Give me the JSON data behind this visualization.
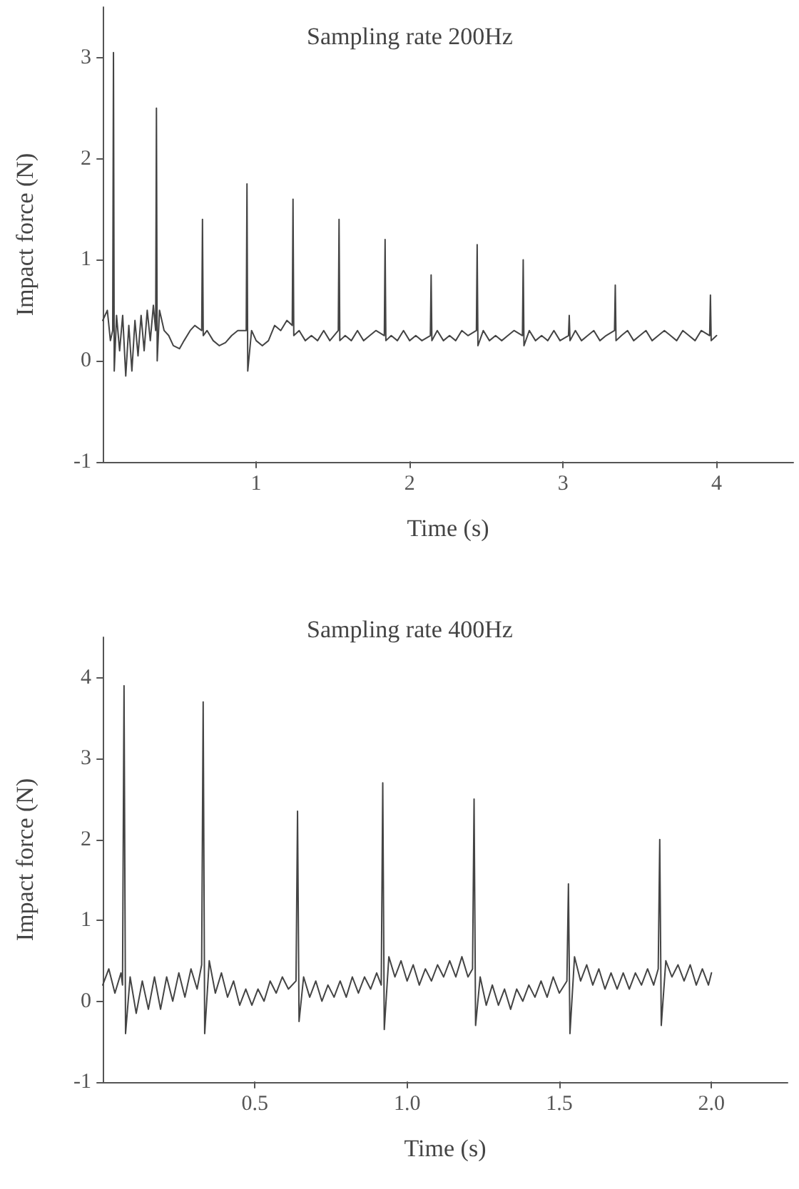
{
  "chart_data": [
    {
      "type": "line",
      "title": "Sampling rate 200Hz",
      "xlabel": "Time (s)",
      "ylabel": "Impact force (N)",
      "color": "#444444",
      "marker": "none",
      "xlim": [
        0,
        4.5
      ],
      "xticks": [
        1,
        2,
        3,
        4
      ],
      "ylim": [
        -1,
        3.5
      ],
      "yticks": [
        -1,
        0,
        1,
        2,
        3
      ],
      "x": [
        0,
        0.03,
        0.05,
        0.065,
        0.07,
        0.075,
        0.09,
        0.11,
        0.13,
        0.15,
        0.17,
        0.19,
        0.21,
        0.23,
        0.25,
        0.27,
        0.29,
        0.31,
        0.33,
        0.345,
        0.35,
        0.355,
        0.37,
        0.4,
        0.43,
        0.46,
        0.5,
        0.53,
        0.57,
        0.6,
        0.645,
        0.65,
        0.655,
        0.68,
        0.72,
        0.76,
        0.8,
        0.84,
        0.88,
        0.935,
        0.94,
        0.945,
        0.97,
        1.0,
        1.04,
        1.08,
        1.12,
        1.16,
        1.2,
        1.235,
        1.24,
        1.245,
        1.28,
        1.32,
        1.36,
        1.4,
        1.44,
        1.48,
        1.535,
        1.54,
        1.545,
        1.58,
        1.62,
        1.66,
        1.7,
        1.74,
        1.78,
        1.835,
        1.84,
        1.845,
        1.88,
        1.92,
        1.96,
        2.0,
        2.04,
        2.08,
        2.135,
        2.14,
        2.145,
        2.18,
        2.22,
        2.26,
        2.3,
        2.34,
        2.38,
        2.435,
        2.44,
        2.445,
        2.48,
        2.52,
        2.56,
        2.6,
        2.64,
        2.68,
        2.735,
        2.74,
        2.745,
        2.78,
        2.82,
        2.86,
        2.9,
        2.94,
        2.98,
        3.035,
        3.04,
        3.045,
        3.08,
        3.12,
        3.16,
        3.2,
        3.24,
        3.28,
        3.335,
        3.34,
        3.345,
        3.38,
        3.42,
        3.46,
        3.5,
        3.54,
        3.58,
        3.62,
        3.66,
        3.7,
        3.74,
        3.78,
        3.82,
        3.86,
        3.9,
        3.955,
        3.96,
        3.965,
        4.0
      ],
      "values": [
        0.4,
        0.5,
        0.2,
        0.3,
        3.05,
        -0.1,
        0.45,
        0.1,
        0.45,
        -0.15,
        0.35,
        -0.1,
        0.4,
        0.05,
        0.45,
        0.1,
        0.5,
        0.2,
        0.55,
        0.3,
        2.5,
        0.0,
        0.5,
        0.3,
        0.25,
        0.15,
        0.12,
        0.2,
        0.3,
        0.35,
        0.3,
        1.4,
        0.25,
        0.3,
        0.2,
        0.15,
        0.18,
        0.25,
        0.3,
        0.3,
        1.75,
        -0.1,
        0.3,
        0.2,
        0.15,
        0.2,
        0.35,
        0.3,
        0.4,
        0.35,
        1.6,
        0.25,
        0.3,
        0.2,
        0.25,
        0.2,
        0.3,
        0.2,
        0.3,
        1.4,
        0.2,
        0.25,
        0.2,
        0.3,
        0.2,
        0.25,
        0.3,
        0.25,
        1.2,
        0.2,
        0.25,
        0.2,
        0.3,
        0.2,
        0.25,
        0.2,
        0.25,
        0.85,
        0.2,
        0.3,
        0.2,
        0.25,
        0.2,
        0.3,
        0.25,
        0.3,
        1.15,
        0.15,
        0.3,
        0.2,
        0.25,
        0.2,
        0.25,
        0.3,
        0.25,
        1.0,
        0.15,
        0.3,
        0.2,
        0.25,
        0.2,
        0.3,
        0.2,
        0.25,
        0.45,
        0.2,
        0.3,
        0.2,
        0.25,
        0.3,
        0.2,
        0.25,
        0.3,
        0.75,
        0.2,
        0.25,
        0.3,
        0.2,
        0.25,
        0.3,
        0.2,
        0.25,
        0.3,
        0.25,
        0.2,
        0.3,
        0.25,
        0.2,
        0.3,
        0.25,
        0.65,
        0.2,
        0.25
      ]
    },
    {
      "type": "line",
      "title": "Sampling rate 400Hz",
      "xlabel": "Time (s)",
      "ylabel": "Impact force (N)",
      "color": "#444444",
      "marker": "none",
      "xlim": [
        0,
        2.25
      ],
      "xticks": [
        0.5,
        {
          "value": 1,
          "label": "1.0"
        },
        1.5,
        {
          "value": 2,
          "label": "2.0"
        }
      ],
      "ylim": [
        -1,
        4.5
      ],
      "yticks": [
        -1,
        0,
        1,
        2,
        3,
        4
      ],
      "x": [
        0,
        0.02,
        0.04,
        0.06,
        0.065,
        0.07,
        0.075,
        0.09,
        0.11,
        0.13,
        0.15,
        0.17,
        0.19,
        0.21,
        0.23,
        0.25,
        0.27,
        0.29,
        0.31,
        0.325,
        0.33,
        0.335,
        0.35,
        0.37,
        0.39,
        0.41,
        0.43,
        0.45,
        0.47,
        0.49,
        0.51,
        0.53,
        0.55,
        0.57,
        0.59,
        0.61,
        0.635,
        0.64,
        0.645,
        0.66,
        0.68,
        0.7,
        0.72,
        0.74,
        0.76,
        0.78,
        0.8,
        0.82,
        0.84,
        0.86,
        0.88,
        0.9,
        0.915,
        0.92,
        0.925,
        0.94,
        0.96,
        0.98,
        1.0,
        1.02,
        1.04,
        1.06,
        1.08,
        1.1,
        1.12,
        1.14,
        1.16,
        1.18,
        1.2,
        1.215,
        1.22,
        1.225,
        1.24,
        1.26,
        1.28,
        1.3,
        1.32,
        1.34,
        1.36,
        1.38,
        1.4,
        1.42,
        1.44,
        1.46,
        1.48,
        1.5,
        1.525,
        1.53,
        1.535,
        1.55,
        1.57,
        1.59,
        1.61,
        1.63,
        1.65,
        1.67,
        1.69,
        1.71,
        1.73,
        1.75,
        1.77,
        1.79,
        1.81,
        1.825,
        1.83,
        1.835,
        1.85,
        1.87,
        1.89,
        1.91,
        1.93,
        1.95,
        1.97,
        1.99,
        2.0
      ],
      "values": [
        0.2,
        0.4,
        0.1,
        0.35,
        0.2,
        3.9,
        -0.4,
        0.3,
        -0.15,
        0.25,
        -0.1,
        0.3,
        -0.1,
        0.3,
        0.0,
        0.35,
        0.05,
        0.4,
        0.15,
        0.45,
        3.7,
        -0.4,
        0.5,
        0.1,
        0.35,
        0.05,
        0.25,
        -0.05,
        0.15,
        -0.05,
        0.15,
        0.0,
        0.25,
        0.1,
        0.3,
        0.15,
        0.25,
        2.35,
        -0.25,
        0.3,
        0.05,
        0.25,
        0.0,
        0.2,
        0.05,
        0.25,
        0.05,
        0.3,
        0.1,
        0.3,
        0.15,
        0.35,
        0.2,
        2.7,
        -0.35,
        0.55,
        0.3,
        0.5,
        0.25,
        0.45,
        0.2,
        0.4,
        0.25,
        0.45,
        0.3,
        0.5,
        0.3,
        0.55,
        0.3,
        0.4,
        2.5,
        -0.3,
        0.3,
        -0.05,
        0.2,
        -0.05,
        0.15,
        -0.1,
        0.15,
        0.0,
        0.2,
        0.05,
        0.25,
        0.05,
        0.3,
        0.1,
        0.25,
        1.45,
        -0.4,
        0.55,
        0.25,
        0.45,
        0.2,
        0.4,
        0.15,
        0.35,
        0.15,
        0.35,
        0.15,
        0.35,
        0.2,
        0.4,
        0.2,
        0.4,
        2.0,
        -0.3,
        0.5,
        0.3,
        0.45,
        0.25,
        0.45,
        0.2,
        0.4,
        0.2,
        0.35
      ]
    }
  ]
}
